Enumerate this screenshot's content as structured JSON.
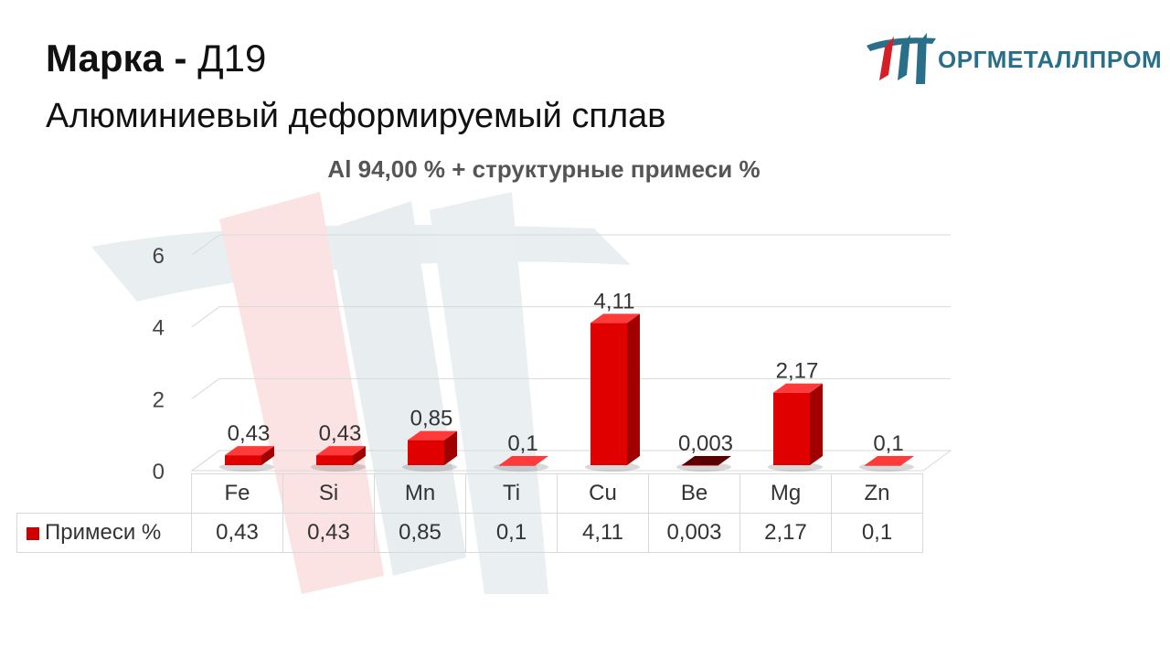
{
  "header": {
    "title_bold": "Марка -",
    "title_grade": "Д19",
    "subtitle": "Алюминиевый деформируемый сплав"
  },
  "logo": {
    "text": "ОРГМЕТАЛЛПРОМ"
  },
  "chart_data": {
    "type": "bar",
    "title": "Al 94,00 % + структурные примеси %",
    "categories": [
      "Fe",
      "Si",
      "Mn",
      "Ti",
      "Cu",
      "Be",
      "Mg",
      "Zn"
    ],
    "series": [
      {
        "name": "Примеси %",
        "values": [
          0.43,
          0.43,
          0.85,
          0.1,
          4.11,
          0.003,
          2.17,
          0.1
        ],
        "labels": [
          "0,43",
          "0,43",
          "0,85",
          "0,1",
          "4,11",
          "0,003",
          "2,17",
          "0,1"
        ]
      }
    ],
    "yticks": [
      "0",
      "2",
      "4",
      "6"
    ],
    "ylim": [
      0,
      6
    ],
    "grid": true,
    "legend": "data-table",
    "colors": {
      "bar": "#e00000",
      "bar_top": "#ff3a3a",
      "bar_side": "#a00000",
      "watermark": "#e6ecef"
    }
  }
}
